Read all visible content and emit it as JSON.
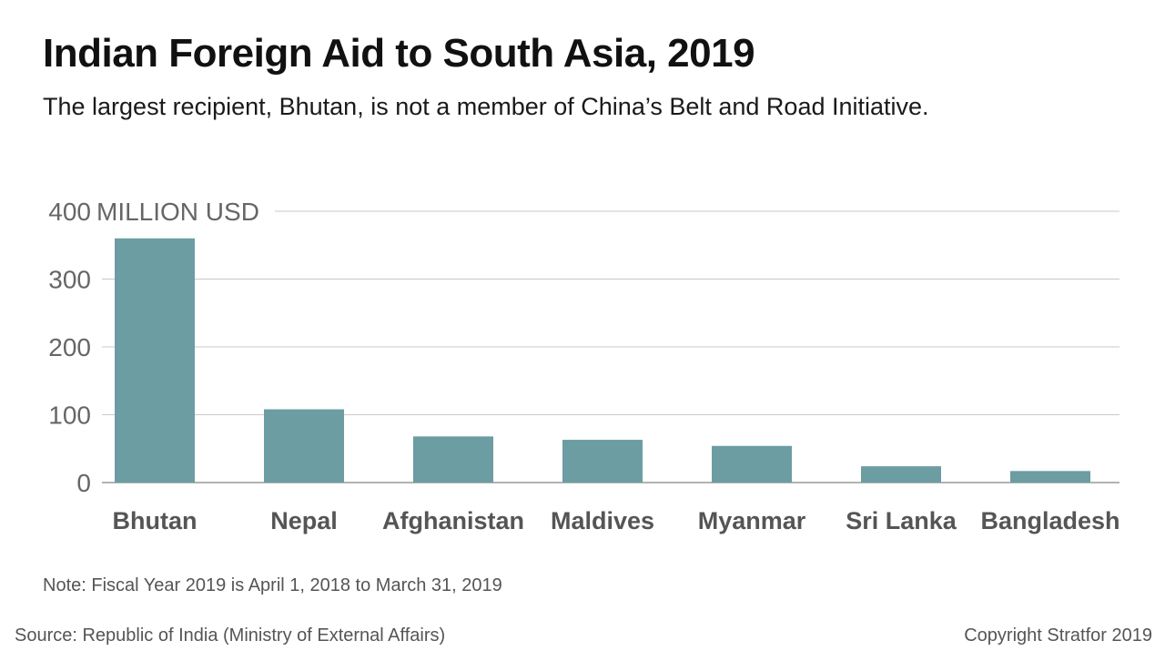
{
  "header": {
    "title": "Indian Foreign Aid to South Asia, 2019",
    "subtitle": "The largest recipient, Bhutan, is not a member of China’s Belt and Road Initiative."
  },
  "footer": {
    "note": "Note: Fiscal Year 2019 is April 1, 2018 to March 31, 2019",
    "source": "Source: Republic of India (Ministry of External Affairs)",
    "copyright": "Copyright Stratfor 2019"
  },
  "colors": {
    "bar": "#6b9da2",
    "grid": "#c9c9c9",
    "axis": "#999999"
  },
  "chart_data": {
    "type": "bar",
    "title": "Indian Foreign Aid to South Asia, 2019",
    "ylabel": "MILLION USD",
    "categories": [
      "Bhutan",
      "Nepal",
      "Afghanistan",
      "Maldives",
      "Myanmar",
      "Sri Lanka",
      "Bangladesh"
    ],
    "values": [
      360,
      108,
      68,
      63,
      54,
      24,
      17
    ],
    "ylim": [
      0,
      400
    ],
    "yticks": [
      0,
      100,
      200,
      300,
      400
    ],
    "grid": true,
    "legend": "none"
  }
}
